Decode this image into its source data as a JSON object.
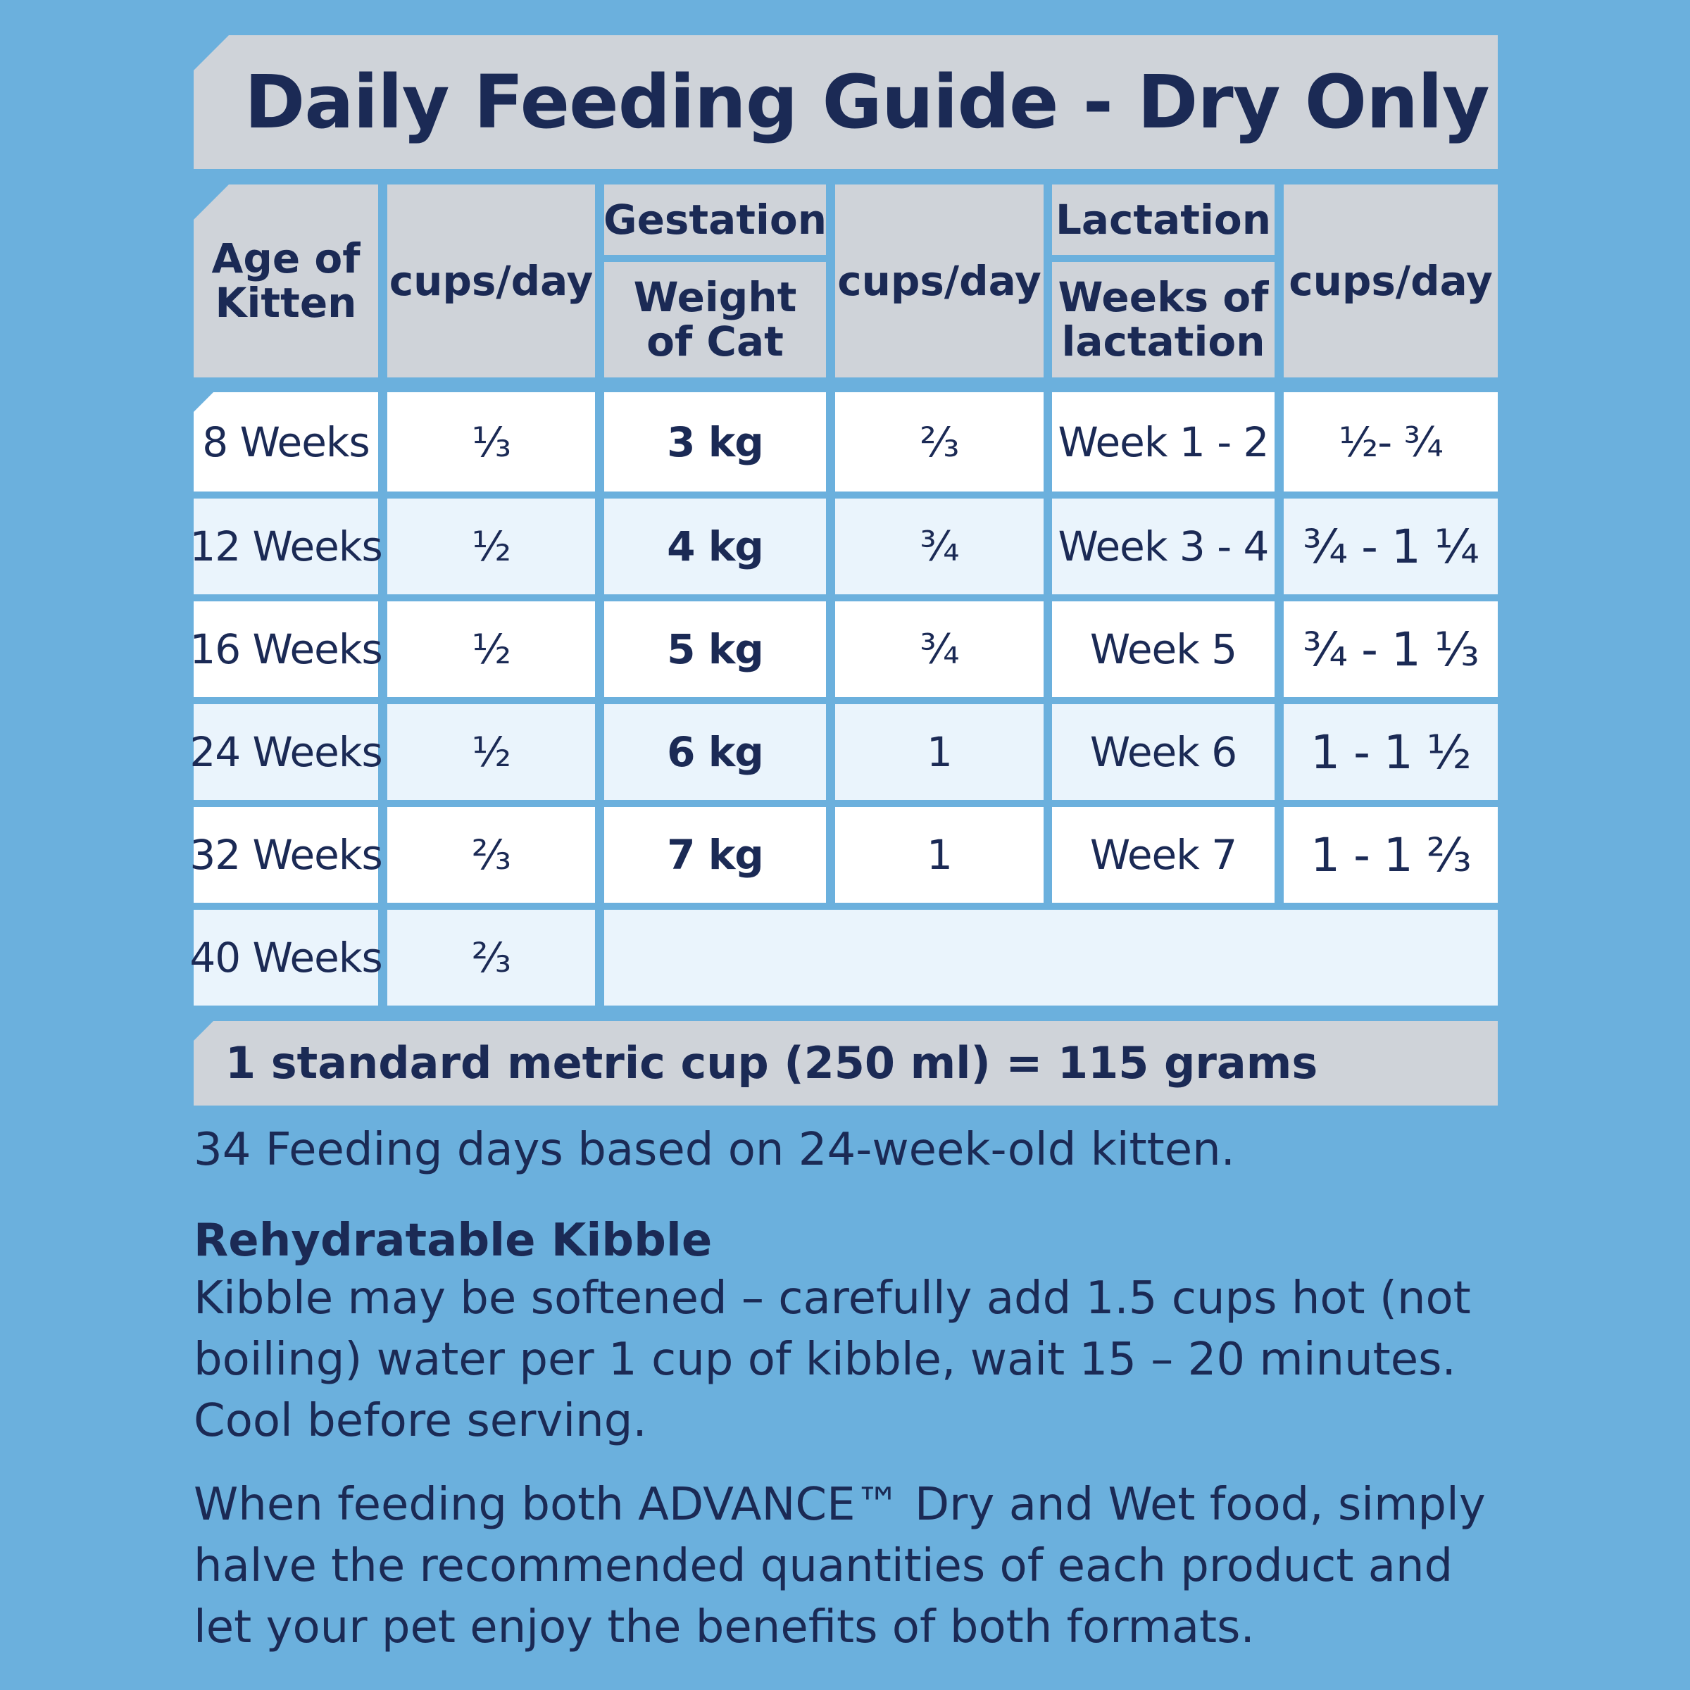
{
  "title": "Daily Feeding Guide - Dry Only",
  "table": {
    "headers": {
      "age_of_kitten": "Age of Kitten",
      "cups_day_kitten": "cups/day",
      "gestation": "Gestation",
      "weight_of_cat": "Weight of Cat",
      "cups_day_gestation": "cups/day",
      "lactation": "Lactation",
      "weeks_of_lactation": "Weeks of lactation",
      "cups_day_lactation": "cups/day"
    },
    "kitten_rows": [
      {
        "age": "8 Weeks",
        "cups": "⅓"
      },
      {
        "age": "12 Weeks",
        "cups": "½"
      },
      {
        "age": "16 Weeks",
        "cups": "½"
      },
      {
        "age": "24 Weeks",
        "cups": "½"
      },
      {
        "age": "32 Weeks",
        "cups": "⅔"
      },
      {
        "age": "40 Weeks",
        "cups": "⅔"
      }
    ],
    "gestation_rows": [
      {
        "weight": "3 kg",
        "cups": "⅔"
      },
      {
        "weight": "4 kg",
        "cups": "¾"
      },
      {
        "weight": "5 kg",
        "cups": "¾"
      },
      {
        "weight": "6 kg",
        "cups": "1"
      },
      {
        "weight": "7 kg",
        "cups": "1"
      }
    ],
    "lactation_rows": [
      {
        "weeks": "Week 1 - 2",
        "cups": "½- ¾"
      },
      {
        "weeks": "Week 3 - 4",
        "cups": "¾ - 1 ¼"
      },
      {
        "weeks": "Week 5",
        "cups": "¾ - 1 ⅓"
      },
      {
        "weeks": "Week 6",
        "cups": "1 - 1 ½"
      },
      {
        "weeks": "Week 7",
        "cups": "1 - 1 ⅔"
      }
    ]
  },
  "cup_conversion": "1 standard metric cup (250 ml) = 115 grams",
  "feeding_days_note": "34 Feeding days based on 24-week-old kitten.",
  "rehydratable": {
    "heading": "Rehydratable Kibble",
    "text": "Kibble may be softened – carefully add 1.5 cups hot (not boiling) water per 1 cup of kibble, wait 15 – 20 minutes. Cool before serving."
  },
  "combined_feeding_note": "When feeding both ADVANCE™ Dry and Wet food, simply halve the recommended quantities of each product and let your pet enjoy the benefits of both formats."
}
